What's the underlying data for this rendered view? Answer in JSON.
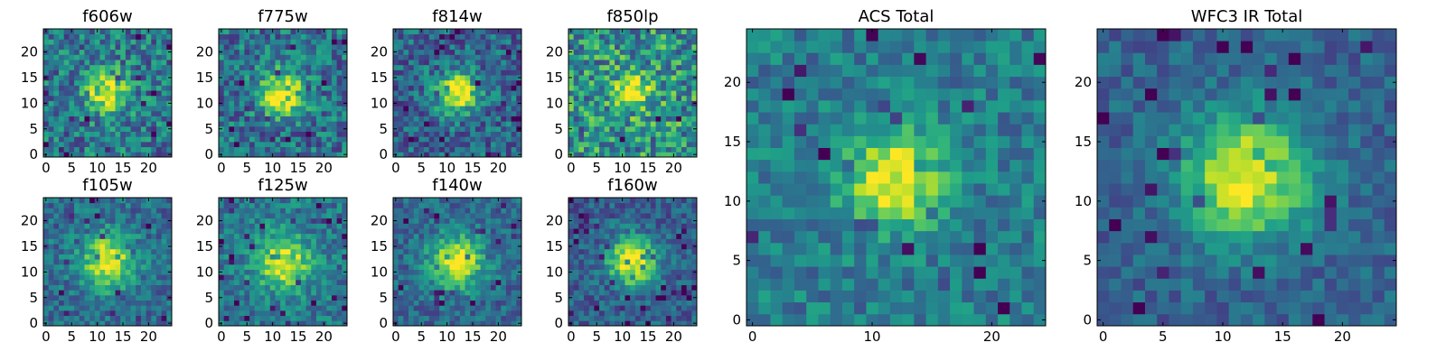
{
  "figure": {
    "description_free": true
  },
  "chart_data": [
    {
      "type": "heatmap",
      "title": "f606w",
      "xticks": [
        "0",
        "5",
        "10",
        "15",
        "20"
      ],
      "yticks": [
        "0",
        "5",
        "10",
        "15",
        "20"
      ],
      "xlim": [
        -0.5,
        24.5
      ],
      "ylim": [
        -0.5,
        24.5
      ],
      "grid_size": 25,
      "peak": [
        12,
        12
      ],
      "peak_width": 2.8,
      "noise": 0.32,
      "background": 0.4,
      "colormap": "viridis"
    },
    {
      "type": "heatmap",
      "title": "f775w",
      "xticks": [
        "0",
        "5",
        "10",
        "15",
        "20"
      ],
      "yticks": [
        "0",
        "5",
        "10",
        "15",
        "20"
      ],
      "xlim": [
        -0.5,
        24.5
      ],
      "ylim": [
        -0.5,
        24.5
      ],
      "grid_size": 25,
      "peak": [
        12,
        12
      ],
      "peak_width": 3.0,
      "noise": 0.3,
      "background": 0.38,
      "colormap": "viridis"
    },
    {
      "type": "heatmap",
      "title": "f814w",
      "xticks": [
        "0",
        "5",
        "10",
        "15",
        "20"
      ],
      "yticks": [
        "0",
        "5",
        "10",
        "15",
        "20"
      ],
      "xlim": [
        -0.5,
        24.5
      ],
      "ylim": [
        -0.5,
        24.5
      ],
      "grid_size": 25,
      "peak": [
        12,
        12
      ],
      "peak_width": 2.8,
      "noise": 0.28,
      "background": 0.33,
      "colormap": "viridis"
    },
    {
      "type": "heatmap",
      "title": "f850lp",
      "xticks": [
        "0",
        "5",
        "10",
        "15",
        "20"
      ],
      "yticks": [
        "0",
        "5",
        "10",
        "15",
        "20"
      ],
      "xlim": [
        -0.5,
        24.5
      ],
      "ylim": [
        -0.5,
        24.5
      ],
      "grid_size": 25,
      "peak": [
        12,
        12
      ],
      "peak_width": 2.6,
      "noise": 0.38,
      "background": 0.52,
      "colormap": "viridis"
    },
    {
      "type": "heatmap",
      "title": "f105w",
      "xticks": [
        "0",
        "5",
        "10",
        "15",
        "20"
      ],
      "yticks": [
        "0",
        "5",
        "10",
        "15",
        "20"
      ],
      "xlim": [
        -0.5,
        24.5
      ],
      "ylim": [
        -0.5,
        24.5
      ],
      "grid_size": 25,
      "peak": [
        12,
        12
      ],
      "peak_width": 3.6,
      "noise": 0.22,
      "background": 0.36,
      "colormap": "viridis"
    },
    {
      "type": "heatmap",
      "title": "f125w",
      "xticks": [
        "0",
        "5",
        "10",
        "15",
        "20"
      ],
      "yticks": [
        "0",
        "5",
        "10",
        "15",
        "20"
      ],
      "xlim": [
        -0.5,
        24.5
      ],
      "ylim": [
        -0.5,
        24.5
      ],
      "grid_size": 25,
      "peak": [
        12,
        12
      ],
      "peak_width": 3.6,
      "noise": 0.22,
      "background": 0.4,
      "colormap": "viridis"
    },
    {
      "type": "heatmap",
      "title": "f140w",
      "xticks": [
        "0",
        "5",
        "10",
        "15",
        "20"
      ],
      "yticks": [
        "0",
        "5",
        "10",
        "15",
        "20"
      ],
      "xlim": [
        -0.5,
        24.5
      ],
      "ylim": [
        -0.5,
        24.5
      ],
      "grid_size": 25,
      "peak": [
        12,
        12
      ],
      "peak_width": 3.6,
      "noise": 0.2,
      "background": 0.34,
      "colormap": "viridis"
    },
    {
      "type": "heatmap",
      "title": "f160w",
      "xticks": [
        "0",
        "5",
        "10",
        "15",
        "20"
      ],
      "yticks": [
        "0",
        "5",
        "10",
        "15",
        "20"
      ],
      "xlim": [
        -0.5,
        24.5
      ],
      "ylim": [
        -0.5,
        24.5
      ],
      "grid_size": 25,
      "peak": [
        12,
        12
      ],
      "peak_width": 3.4,
      "noise": 0.2,
      "background": 0.3,
      "colormap": "viridis"
    },
    {
      "type": "heatmap",
      "title": "ACS Total",
      "xticks": [
        "0",
        "10",
        "20"
      ],
      "yticks": [
        "0",
        "5",
        "10",
        "15",
        "20"
      ],
      "xtick_values": [
        0,
        10,
        20
      ],
      "ytick_values": [
        0,
        5,
        10,
        15,
        20
      ],
      "xlim": [
        -0.5,
        24.5
      ],
      "ylim": [
        -0.5,
        24.5
      ],
      "grid_size": 25,
      "peak": [
        12,
        12
      ],
      "peak_width": 2.9,
      "noise": 0.2,
      "background": 0.42,
      "colormap": "viridis"
    },
    {
      "type": "heatmap",
      "title": "WFC3 IR Total",
      "xticks": [
        "0",
        "5",
        "10",
        "15",
        "20"
      ],
      "yticks": [
        "0",
        "5",
        "10",
        "15",
        "20"
      ],
      "xlim": [
        -0.5,
        24.5
      ],
      "ylim": [
        -0.5,
        24.5
      ],
      "grid_size": 25,
      "peak": [
        12,
        12
      ],
      "peak_width": 3.6,
      "noise": 0.16,
      "background": 0.32,
      "colormap": "viridis"
    }
  ]
}
